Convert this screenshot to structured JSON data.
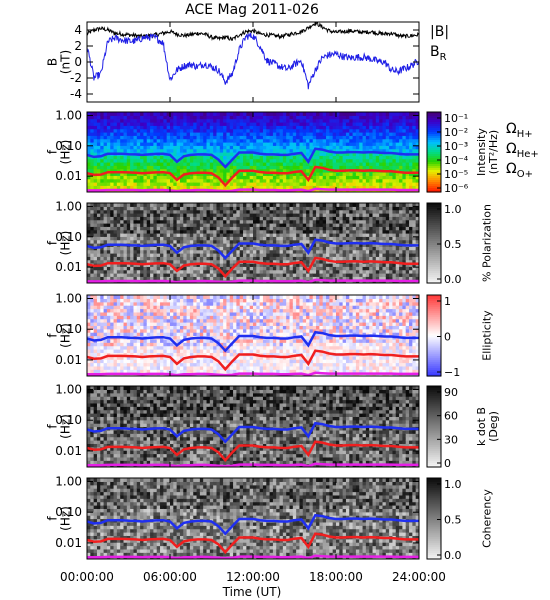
{
  "title": "ACE Mag 2011-026",
  "colors": {
    "btotal": "#000000",
    "br": "#1f1fe6",
    "h_plus": "#1f2ff0",
    "he_plus": "#f01f1f",
    "o_plus": "#e61fe6",
    "frame": "#000000"
  },
  "chart_data": [
    {
      "type": "line",
      "id": "bfield",
      "ylabel_line1": "B",
      "ylabel_line2": "(nT)",
      "ylim": [
        -5,
        5
      ],
      "yticks": [
        "4",
        "2",
        "0",
        "-2",
        "-4"
      ],
      "ytick_values": [
        4,
        2,
        0,
        -2,
        -4
      ],
      "x_hours": [
        0,
        0.5,
        1,
        1.5,
        2,
        2.5,
        3,
        3.5,
        4,
        4.5,
        5,
        5.5,
        6,
        6.5,
        7,
        7.5,
        8,
        8.5,
        9,
        9.5,
        10,
        10.5,
        11,
        11.5,
        12,
        12.5,
        13,
        13.5,
        14,
        14.5,
        15,
        15.5,
        16,
        16.5,
        17,
        17.5,
        18,
        18.5,
        19,
        19.5,
        20,
        20.5,
        21,
        21.5,
        22,
        22.5,
        23,
        23.5,
        24
      ],
      "series": [
        {
          "name": "|B|",
          "color": "#000000",
          "values": [
            3.5,
            4.0,
            4.2,
            4.0,
            3.6,
            3.5,
            3.4,
            3.3,
            3.2,
            3.3,
            3.4,
            3.6,
            3.8,
            3.5,
            3.3,
            3.4,
            3.6,
            3.5,
            3.1,
            2.9,
            3.1,
            2.8,
            3.4,
            3.8,
            3.9,
            3.5,
            3.4,
            3.3,
            3.2,
            3.4,
            3.6,
            3.8,
            4.3,
            4.9,
            4.4,
            3.9,
            3.7,
            3.8,
            3.9,
            3.8,
            3.7,
            3.8,
            3.6,
            3.5,
            3.6,
            3.3,
            3.2,
            3.3,
            3.4
          ]
        },
        {
          "name": "BR",
          "color": "#1f1fe6",
          "values": [
            2.0,
            -2.0,
            -1.5,
            2.5,
            3.0,
            2.8,
            2.6,
            2.6,
            3.0,
            3.1,
            3.0,
            2.4,
            -2.2,
            -1.0,
            -0.5,
            -0.3,
            -0.6,
            -0.2,
            -0.6,
            -1.0,
            -2.5,
            -1.5,
            1.5,
            3.2,
            3.3,
            2.0,
            0.2,
            -0.2,
            -0.6,
            -0.9,
            -0.3,
            0.2,
            -3.0,
            -1.0,
            0.5,
            0.9,
            1.0,
            0.7,
            0.5,
            0.6,
            0.6,
            0.4,
            0.1,
            0.0,
            -1.0,
            -1.2,
            -0.8,
            -0.4,
            0.2
          ]
        }
      ],
      "legend": [
        {
          "label": "|B|",
          "sub": "",
          "color": "#000000"
        },
        {
          "label": "B",
          "sub": "R",
          "color": "#1f1fe6"
        }
      ]
    },
    {
      "type": "heatmap",
      "id": "intensity",
      "ylabel_line1": "f",
      "ylabel_line2": "(Hz)",
      "yscale": "log",
      "ylim": [
        0.003,
        1.3
      ],
      "yticks": [
        "1.00",
        "0.10",
        "0.01"
      ],
      "ytick_values": [
        1.0,
        0.1,
        0.01
      ],
      "colormap": "rainbow",
      "colorbar_ticks": [
        "10⁻¹",
        "10⁻²",
        "10⁻³",
        "10⁻⁴",
        "10⁻⁵",
        "10⁻⁶"
      ],
      "colorbar_label_line1": "Intensity",
      "colorbar_label_line2": "(nT²/Hz)",
      "legend": [
        {
          "label": "Ω",
          "sub": "H+",
          "color": "#1f2ff0"
        },
        {
          "label": "Ω",
          "sub": "He+",
          "color": "#f01f1f"
        },
        {
          "label": "Ω",
          "sub": "O+",
          "color": "#e61fe6"
        }
      ]
    },
    {
      "type": "heatmap",
      "id": "polarization",
      "ylabel_line1": "f",
      "ylabel_line2": "(Hz)",
      "yscale": "log",
      "ylim": [
        0.003,
        1.3
      ],
      "yticks": [
        "1.00",
        "0.10",
        "0.01"
      ],
      "ytick_values": [
        1.0,
        0.1,
        0.01
      ],
      "colormap": "gray",
      "colorbar_ticks": [
        "1.0",
        "0.5",
        "0.0"
      ],
      "colorbar_label_line1": "% Polarization",
      "colorbar_label_line2": ""
    },
    {
      "type": "heatmap",
      "id": "ellipticity",
      "ylabel_line1": "f",
      "ylabel_line2": "(Hz)",
      "yscale": "log",
      "ylim": [
        0.003,
        1.3
      ],
      "yticks": [
        "1.00",
        "0.10",
        "0.01"
      ],
      "ytick_values": [
        1.0,
        0.1,
        0.01
      ],
      "colormap": "bwr",
      "colorbar_ticks": [
        "1",
        "0",
        "−1"
      ],
      "colorbar_label_line1": "Ellipticity",
      "colorbar_label_line2": ""
    },
    {
      "type": "heatmap",
      "id": "kdotb",
      "ylabel_line1": "f",
      "ylabel_line2": "(Hz)",
      "yscale": "log",
      "ylim": [
        0.003,
        1.3
      ],
      "yticks": [
        "1.00",
        "0.10",
        "0.01"
      ],
      "ytick_values": [
        1.0,
        0.1,
        0.01
      ],
      "colormap": "gray",
      "colorbar_ticks": [
        "90",
        "60",
        "30",
        "0"
      ],
      "colorbar_label_line1": "k dot B",
      "colorbar_label_line2": "(Deg)"
    },
    {
      "type": "heatmap",
      "id": "coherency",
      "ylabel_line1": "f",
      "ylabel_line2": "(Hz)",
      "yscale": "log",
      "ylim": [
        0.003,
        1.3
      ],
      "yticks": [
        "1.00",
        "0.10",
        "0.01"
      ],
      "ytick_values": [
        1.0,
        0.1,
        0.01
      ],
      "colormap": "gray",
      "colorbar_ticks": [
        "1.0",
        "0.5",
        "0.0"
      ],
      "colorbar_label_line1": "Coherency",
      "colorbar_label_line2": ""
    }
  ],
  "gyrofrequencies": {
    "x_hours": [
      0,
      0.5,
      1,
      1.5,
      2,
      2.5,
      3,
      3.5,
      4,
      4.5,
      5,
      5.5,
      6,
      6.5,
      7,
      7.5,
      8,
      8.5,
      9,
      9.5,
      10,
      10.5,
      11,
      11.5,
      12,
      12.5,
      13,
      13.5,
      14,
      14.5,
      15,
      15.5,
      16,
      16.5,
      17,
      17.5,
      18,
      18.5,
      19,
      19.5,
      20,
      20.5,
      21,
      21.5,
      22,
      22.5,
      23,
      23.5,
      24
    ],
    "h_plus": [
      0.05,
      0.043,
      0.045,
      0.055,
      0.055,
      0.055,
      0.053,
      0.052,
      0.05,
      0.052,
      0.054,
      0.055,
      0.05,
      0.03,
      0.045,
      0.05,
      0.052,
      0.052,
      0.05,
      0.035,
      0.02,
      0.035,
      0.06,
      0.06,
      0.06,
      0.055,
      0.052,
      0.052,
      0.05,
      0.05,
      0.055,
      0.058,
      0.03,
      0.08,
      0.075,
      0.065,
      0.06,
      0.06,
      0.062,
      0.062,
      0.06,
      0.062,
      0.06,
      0.058,
      0.058,
      0.055,
      0.052,
      0.052,
      0.052
    ],
    "he_plus": [
      0.0125,
      0.011,
      0.0112,
      0.0135,
      0.0135,
      0.0135,
      0.0133,
      0.013,
      0.0125,
      0.013,
      0.0133,
      0.0135,
      0.0125,
      0.0075,
      0.0112,
      0.0125,
      0.013,
      0.013,
      0.0125,
      0.009,
      0.005,
      0.009,
      0.015,
      0.015,
      0.015,
      0.0137,
      0.013,
      0.013,
      0.0125,
      0.0125,
      0.0137,
      0.0145,
      0.0075,
      0.02,
      0.0187,
      0.0162,
      0.015,
      0.015,
      0.0155,
      0.0155,
      0.015,
      0.0155,
      0.015,
      0.0145,
      0.0145,
      0.0137,
      0.013,
      0.013,
      0.013
    ],
    "o_plus": [
      0.0034,
      0.0034,
      0.0034,
      0.0035,
      0.0035,
      0.0035,
      0.0035,
      0.0035,
      0.0034,
      0.0035,
      0.0035,
      0.0035,
      0.0034,
      0.0032,
      0.0034,
      0.0034,
      0.0035,
      0.0035,
      0.0034,
      0.0033,
      0.0032,
      0.0033,
      0.0036,
      0.0036,
      0.0036,
      0.0035,
      0.0035,
      0.0035,
      0.0034,
      0.0034,
      0.0035,
      0.0036,
      0.0032,
      0.0038,
      0.0037,
      0.0036,
      0.0036,
      0.0036,
      0.0036,
      0.0036,
      0.0036,
      0.0036,
      0.0036,
      0.0036,
      0.0036,
      0.0035,
      0.0035,
      0.0035,
      0.0035
    ]
  },
  "x_axis": {
    "label": "Time (UT)",
    "xlim_hours": [
      0,
      24
    ],
    "tick_hours": [
      0,
      6,
      12,
      18,
      24
    ],
    "tick_labels": [
      "00:00:00",
      "06:00:00",
      "12:00:00",
      "18:00:00",
      "24:00:00"
    ]
  }
}
